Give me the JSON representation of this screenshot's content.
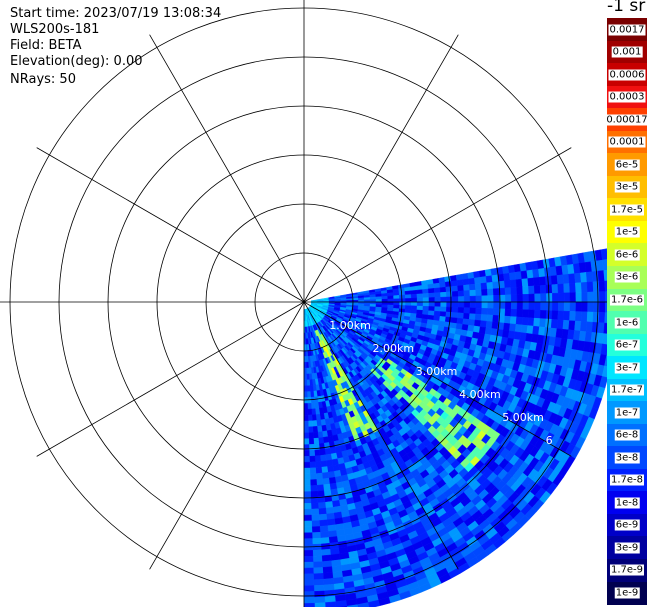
{
  "header": {
    "start_time": "Start time: 2023/07/19 13:08:34",
    "instrument": "WLS200s-181",
    "field": "Field: BETA",
    "elevation": "Elevation(deg): 0.00",
    "nrays": "NRays: 50"
  },
  "colorbar": {
    "unit": "-1 sr",
    "labels": [
      "0.0017",
      "0.001",
      "0.0006",
      "0.0003",
      "0.00017",
      "0.0001",
      "6e-5",
      "3e-5",
      "1.7e-5",
      "1e-5",
      "6e-6",
      "3e-6",
      "1.7e-6",
      "1e-6",
      "6e-7",
      "3e-7",
      "1.7e-7",
      "1e-7",
      "6e-8",
      "3e-8",
      "1.7e-8",
      "1e-8",
      "6e-9",
      "3e-9",
      "1.7e-9",
      "1e-9"
    ],
    "colors": [
      "#7a0000",
      "#a00000",
      "#c80000",
      "#f01010",
      "#ff4000",
      "#ff7000",
      "#ff9a00",
      "#ffbe00",
      "#ffe000",
      "#ffff00",
      "#d4ff2a",
      "#a8ff57",
      "#7cff83",
      "#50ffaf",
      "#24ffdb",
      "#00e6ff",
      "#00c0ff",
      "#0098ff",
      "#0070ff",
      "#0048ff",
      "#0020ff",
      "#0000f0",
      "#0000c8",
      "#0000a0",
      "#000078",
      "#000050"
    ]
  },
  "chart_data": {
    "type": "heatmap",
    "projection": "polar PPI",
    "field": "BETA",
    "units": "-1 sr",
    "scale": "log",
    "value_range": [
      1e-09,
      0.0017
    ],
    "range_rings_km": [
      1,
      2,
      3,
      4,
      5,
      6
    ],
    "range_ring_labels": [
      "1.00km",
      "2.00km",
      "3.00km",
      "4.00km",
      "5.00km",
      "6"
    ],
    "sector_deg": [
      80,
      180
    ],
    "n_rays": 50,
    "features": [
      {
        "kind": "band",
        "azimuth_deg": [
          150,
          160
        ],
        "range_km": [
          0.6,
          3.0
        ],
        "beta": 3e-06
      },
      {
        "kind": "streak",
        "azimuth_deg": [
          125,
          135
        ],
        "range_km": [
          2.0,
          4.8
        ],
        "beta": 1.7e-06
      }
    ],
    "background_beta": 3e-08
  }
}
